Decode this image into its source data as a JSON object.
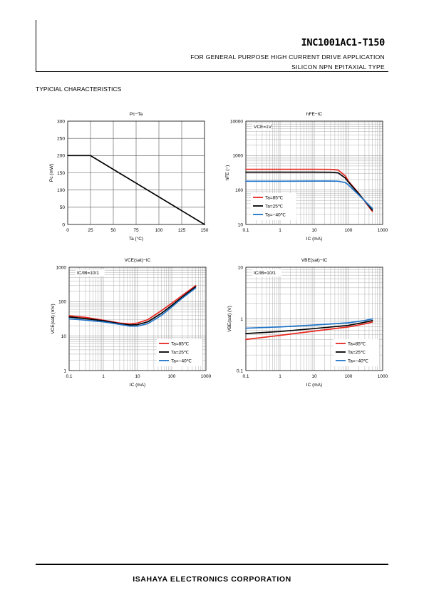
{
  "header": {
    "part_number": "INC1001AC1-T150",
    "application": "FOR GENERAL PURPOSE HIGH CURRENT DRIVE APPLICATION",
    "device_type": "SILICON NPN EPITAXIAL TYPE"
  },
  "section_title": "TYPICIAL CHARACTERISTICS",
  "footer": {
    "company": "ISAHAYA ELECTRONICS CORPORATION"
  },
  "colors": {
    "ta85": "#e8261f",
    "ta25": "#000000",
    "tam40": "#1e73c8",
    "grid": "#b0b0b0"
  },
  "chart_data": [
    {
      "id": "pc-ta",
      "type": "line",
      "title": "Pc−Ta",
      "xlabel": "Ta (°C)",
      "ylabel": "Pc (mW)",
      "xscale": "linear",
      "yscale": "linear",
      "xlim": [
        0,
        150
      ],
      "ylim": [
        0,
        300
      ],
      "xticks": [
        0,
        25,
        50,
        75,
        100,
        125,
        150
      ],
      "yticks": [
        0,
        50,
        100,
        150,
        200,
        250,
        300
      ],
      "grid": true,
      "annotation": "",
      "series": [
        {
          "name": "",
          "color": "#000000",
          "x": [
            0,
            25,
            150
          ],
          "y": [
            200,
            200,
            0
          ]
        }
      ]
    },
    {
      "id": "hfe-ic",
      "type": "line",
      "title": "hFE−IC",
      "xlabel": "IC (mA)",
      "ylabel": "hFE (−)",
      "xscale": "log",
      "yscale": "log",
      "xlim": [
        0.1,
        1000
      ],
      "ylim": [
        10,
        10000
      ],
      "xticks": [
        0.1,
        1,
        10,
        100,
        1000
      ],
      "xticklabels": [
        "0.1",
        "1",
        "10",
        "100",
        "1000"
      ],
      "yticks": [
        10,
        100,
        1000,
        10000
      ],
      "yticklabels": [
        "10",
        "100",
        "1000",
        "10000"
      ],
      "grid": true,
      "annotation": "VCE=1V",
      "legend": "bottom-left",
      "series": [
        {
          "name": "Ta=85℃",
          "color": "#e8261f",
          "x": [
            0.1,
            1,
            10,
            30,
            50,
            80,
            100,
            200,
            500
          ],
          "y": [
            400,
            400,
            400,
            398,
            380,
            260,
            180,
            80,
            24
          ]
        },
        {
          "name": "Ta=25℃",
          "color": "#000000",
          "x": [
            0.1,
            1,
            10,
            30,
            50,
            80,
            100,
            200,
            500
          ],
          "y": [
            330,
            330,
            330,
            328,
            315,
            225,
            170,
            78,
            26
          ]
        },
        {
          "name": "Ta=−40℃",
          "color": "#1e73c8",
          "x": [
            0.1,
            1,
            10,
            30,
            50,
            80,
            100,
            200,
            500
          ],
          "y": [
            180,
            180,
            182,
            182,
            180,
            165,
            140,
            72,
            29
          ]
        }
      ]
    },
    {
      "id": "vcesat-ic",
      "type": "line",
      "title": "VCE(sat)−IC",
      "xlabel": "IC (mA)",
      "ylabel": "VCE(sat) (mV)",
      "xscale": "log",
      "yscale": "log",
      "xlim": [
        0.1,
        1000
      ],
      "ylim": [
        1,
        1000
      ],
      "xticks": [
        0.1,
        1,
        10,
        100,
        1000
      ],
      "xticklabels": [
        "0.1",
        "1",
        "10",
        "100",
        "1000"
      ],
      "yticks": [
        1,
        10,
        100,
        1000
      ],
      "yticklabels": [
        "1",
        "10",
        "100",
        "1000"
      ],
      "grid": true,
      "annotation": "IC/IB=10/1",
      "legend": "bottom-right",
      "series": [
        {
          "name": "Ta=85℃",
          "color": "#e8261f",
          "x": [
            0.1,
            0.3,
            1,
            3,
            6,
            10,
            20,
            50,
            100,
            200,
            500
          ],
          "y": [
            39,
            35,
            29,
            24,
            22.5,
            24,
            30,
            55,
            90,
            150,
            290
          ]
        },
        {
          "name": "Ta=25℃",
          "color": "#000000",
          "x": [
            0.1,
            0.3,
            1,
            3,
            6,
            10,
            20,
            50,
            100,
            200,
            500
          ],
          "y": [
            36,
            32,
            28,
            23,
            21,
            21.5,
            26,
            46,
            78,
            135,
            270
          ]
        },
        {
          "name": "Ta=−40℃",
          "color": "#1e73c8",
          "x": [
            0.1,
            0.3,
            1,
            3,
            6,
            10,
            20,
            50,
            100,
            200,
            500
          ],
          "y": [
            32,
            29,
            26,
            22,
            19.5,
            19.5,
            23,
            40,
            70,
            125,
            250
          ]
        }
      ]
    },
    {
      "id": "vbesat-ic",
      "type": "line",
      "title": "VBE(sat)−IC",
      "xlabel": "IC (mA)",
      "ylabel": "VBE(sat) (V)",
      "xscale": "log",
      "yscale": "log",
      "xlim": [
        0.1,
        1000
      ],
      "ylim": [
        0.1,
        10
      ],
      "xticks": [
        0.1,
        1,
        10,
        100,
        1000
      ],
      "xticklabels": [
        "0.1",
        "1",
        "10",
        "100",
        "1000"
      ],
      "yticks": [
        0.1,
        1,
        10
      ],
      "yticklabels": [
        "0.1",
        "1",
        "10"
      ],
      "grid": true,
      "annotation": "IC/IB=10/1",
      "legend": "bottom-right",
      "series": [
        {
          "name": "Ta=85℃",
          "color": "#e8261f",
          "x": [
            0.1,
            1,
            10,
            100,
            300,
            500
          ],
          "y": [
            0.4,
            0.48,
            0.58,
            0.7,
            0.8,
            0.87
          ]
        },
        {
          "name": "Ta=25℃",
          "color": "#000000",
          "x": [
            0.1,
            1,
            10,
            100,
            300,
            500
          ],
          "y": [
            0.52,
            0.57,
            0.65,
            0.75,
            0.86,
            0.93
          ]
        },
        {
          "name": "Ta=−40℃",
          "color": "#1e73c8",
          "x": [
            0.1,
            1,
            10,
            100,
            300,
            500
          ],
          "y": [
            0.66,
            0.7,
            0.76,
            0.84,
            0.93,
            1.0
          ]
        }
      ]
    }
  ]
}
